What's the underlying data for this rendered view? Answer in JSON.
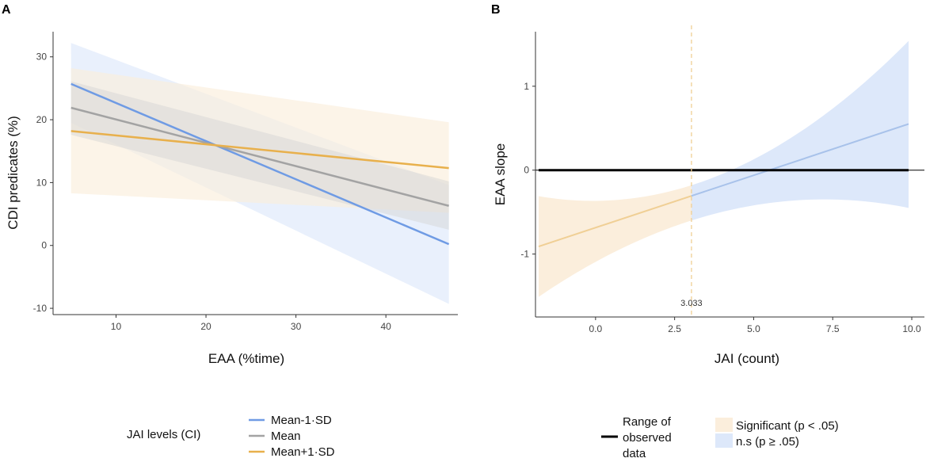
{
  "colors": {
    "low": "#6f9be4",
    "mean": "#a3a3a3",
    "high": "#e8b04c",
    "sig_band": "#fbeedc",
    "ns_band": "#dde8fa",
    "range_line": "#000000"
  },
  "chart_data": [
    {
      "panel": "A",
      "type": "line",
      "xlabel": "EAA (%time)",
      "ylabel": "CDI predicates (%)",
      "xlim": [
        3,
        48
      ],
      "ylim": [
        -11,
        34
      ],
      "xticks": [
        10,
        20,
        30,
        40
      ],
      "yticks": [
        -10,
        0,
        10,
        20,
        30
      ],
      "x": [
        5,
        47
      ],
      "series": [
        {
          "name": "Mean-1·SD",
          "color_key": "low",
          "values": [
            25.7,
            0.2
          ],
          "ci_lower": [
            19.5,
            -9.3
          ],
          "ci_upper": [
            32.2,
            9.6
          ]
        },
        {
          "name": "Mean",
          "color_key": "mean",
          "values": [
            21.9,
            6.3
          ],
          "ci_lower": [
            17.6,
            2.5
          ],
          "ci_upper": [
            26.1,
            10.2
          ]
        },
        {
          "name": "Mean+1·SD",
          "color_key": "high",
          "values": [
            18.2,
            12.3
          ],
          "ci_lower": [
            8.3,
            5.2
          ],
          "ci_upper": [
            28.2,
            19.6
          ]
        }
      ],
      "legend": {
        "title": "JAI levels  (CI)",
        "position": "bottom",
        "entries": [
          "Mean-1·SD",
          "Mean",
          "Mean+1·SD"
        ]
      }
    },
    {
      "panel": "B",
      "type": "line",
      "xlabel": "JAI (count)",
      "ylabel": "EAA slope",
      "xlim": [
        -1.9,
        10.4
      ],
      "ylim": [
        -1.75,
        1.65
      ],
      "xticks": [
        "0.0",
        "2.5",
        "5.0",
        "7.5",
        "10.0"
      ],
      "yticks": [
        "-1",
        "0",
        "1"
      ],
      "x": [
        -1.8,
        3.033,
        9.9
      ],
      "slope": [
        -0.91,
        -0.3,
        0.55
      ],
      "ci_lower": [
        -1.51,
        -0.6,
        -0.45
      ],
      "ci_upper": [
        -0.31,
        -0.18,
        1.54
      ],
      "threshold": 3.033,
      "threshold_label": "3.033",
      "range_of_observed_data": [
        -1.8,
        9.9
      ],
      "legend": {
        "range_label": [
          "Range of",
          "observed",
          "data"
        ],
        "significant_label": "Significant (p < .05)",
        "ns_label": "n.s (p ≥ .05)",
        "position": "bottom"
      }
    }
  ]
}
